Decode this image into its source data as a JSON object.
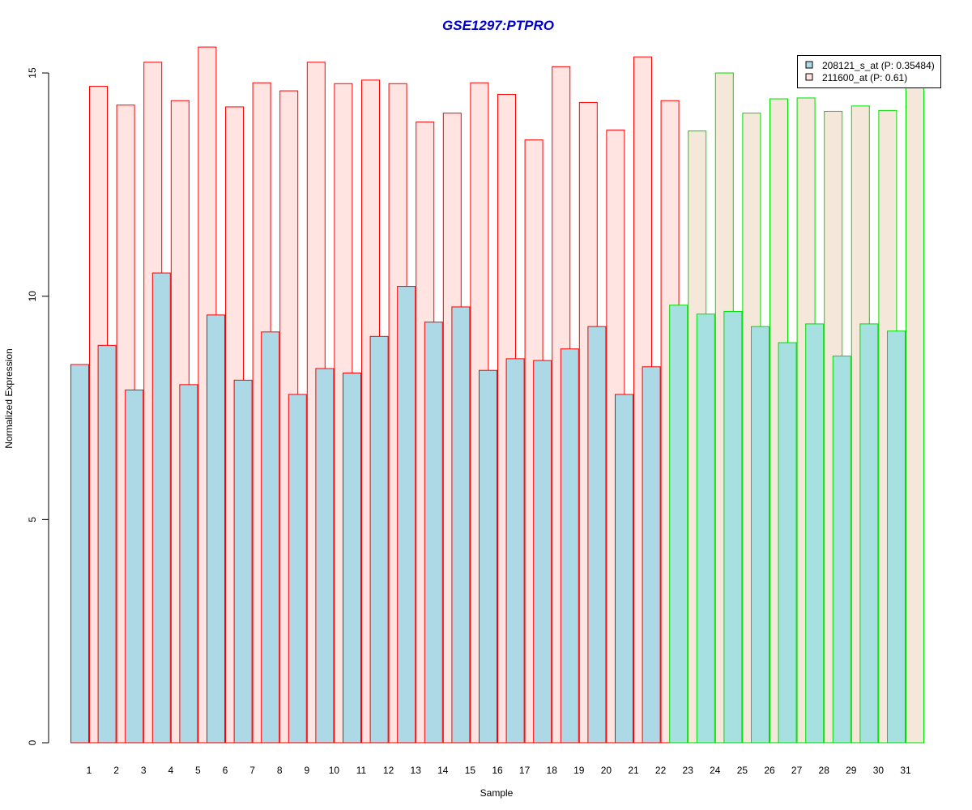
{
  "chart_data": {
    "type": "bar",
    "title": "GSE1297:PTPRO",
    "xlabel": "Sample",
    "ylabel": "Normalized Expression",
    "ylim": [
      0,
      15.6
    ],
    "yticks": [
      0,
      5,
      10,
      15
    ],
    "grid": false,
    "legend_position": "top-right",
    "categories": [
      "1",
      "2",
      "3",
      "4",
      "5",
      "6",
      "7",
      "8",
      "9",
      "10",
      "11",
      "12",
      "13",
      "14",
      "15",
      "16",
      "17",
      "18",
      "19",
      "20",
      "21",
      "22",
      "23",
      "24",
      "25",
      "26",
      "27",
      "28",
      "29",
      "30",
      "31"
    ],
    "group_outline_colors": [
      "#ff0000",
      "#ff0000",
      "#ff0000",
      "#ff0000",
      "#ff0000",
      "#ff0000",
      "#ff0000",
      "#ff0000",
      "#ff0000",
      "#ff0000",
      "#ff0000",
      "#ff0000",
      "#ff0000",
      "#ff0000",
      "#ff0000",
      "#ff0000",
      "#ff0000",
      "#ff0000",
      "#ff0000",
      "#ff0000",
      "#ff0000",
      "#ff0000",
      "#00dd00",
      "#00dd00",
      "#00dd00",
      "#00dd00",
      "#00dd00",
      "#00dd00",
      "#00dd00",
      "#00dd00",
      "#00dd00"
    ],
    "series": [
      {
        "name": "208121_s_at (P: 0.35484)",
        "fill": "#add8e6",
        "values": [
          8.47,
          8.9,
          7.9,
          10.52,
          8.02,
          9.58,
          8.12,
          9.2,
          7.8,
          8.38,
          8.28,
          9.1,
          10.22,
          9.42,
          9.76,
          8.34,
          8.6,
          8.56,
          8.82,
          9.32,
          7.8,
          8.42,
          9.8,
          9.6,
          9.66,
          9.32,
          8.96,
          9.38,
          8.66,
          9.38,
          9.22
        ]
      },
      {
        "name": "211600_at (P: 0.61)",
        "fill": "#ffe4e1",
        "fill_alt": "#f5e8da",
        "values": [
          14.7,
          14.28,
          15.24,
          14.38,
          15.58,
          14.24,
          14.78,
          14.6,
          15.24,
          14.76,
          14.84,
          14.76,
          13.9,
          14.1,
          14.78,
          14.52,
          13.5,
          15.14,
          14.34,
          13.72,
          15.36,
          14.38,
          13.7,
          15.0,
          14.1,
          14.42,
          14.44,
          14.14,
          14.26,
          14.16,
          14.7
        ]
      }
    ]
  }
}
